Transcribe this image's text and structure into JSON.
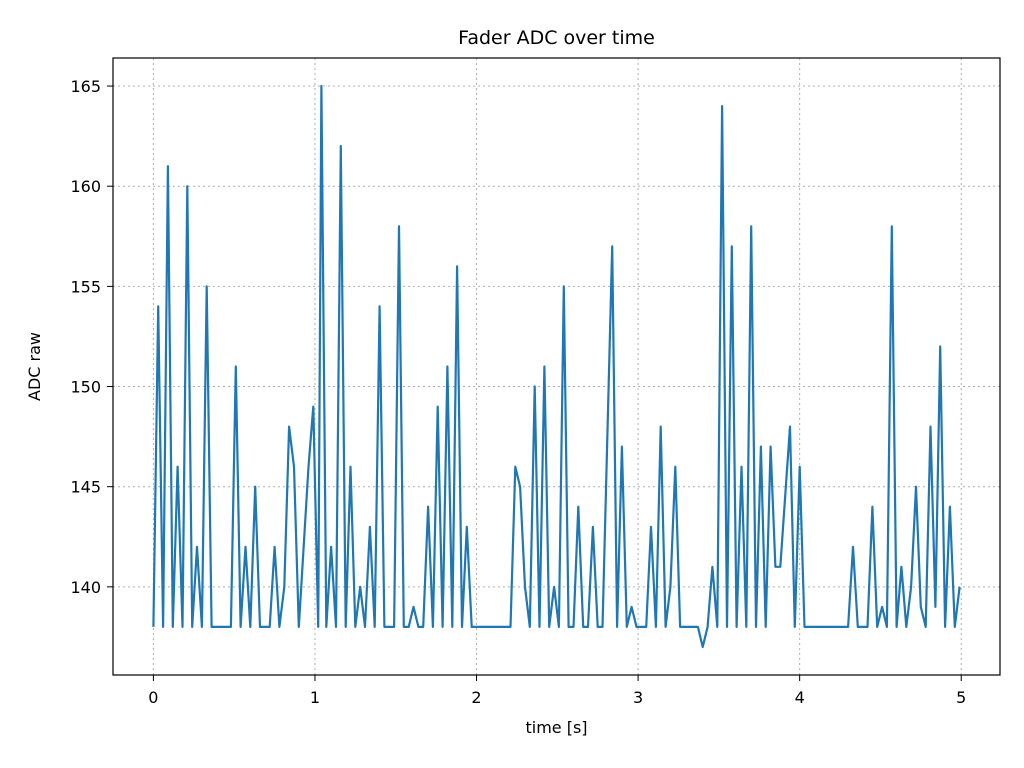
{
  "chart_data": {
    "type": "line",
    "title": "Fader ADC over time",
    "xlabel": "time [s]",
    "ylabel": "ADC raw",
    "xlim": [
      -0.25,
      5.24
    ],
    "ylim": [
      135.6,
      166.4
    ],
    "xticks": [
      0,
      1,
      2,
      3,
      4,
      5
    ],
    "yticks": [
      140,
      145,
      150,
      155,
      160,
      165
    ],
    "grid": true,
    "grid_style": "dotted",
    "legend": "none",
    "series": [
      {
        "color": "#1f77b4",
        "points": [
          [
            0.0,
            138
          ],
          [
            0.03,
            154
          ],
          [
            0.06,
            138
          ],
          [
            0.09,
            161
          ],
          [
            0.12,
            138
          ],
          [
            0.15,
            146
          ],
          [
            0.18,
            138
          ],
          [
            0.21,
            160
          ],
          [
            0.24,
            138
          ],
          [
            0.27,
            142
          ],
          [
            0.3,
            138
          ],
          [
            0.33,
            155
          ],
          [
            0.36,
            138
          ],
          [
            0.48,
            138
          ],
          [
            0.51,
            151
          ],
          [
            0.54,
            138
          ],
          [
            0.57,
            142
          ],
          [
            0.6,
            138
          ],
          [
            0.63,
            145
          ],
          [
            0.66,
            138
          ],
          [
            0.72,
            138
          ],
          [
            0.75,
            142
          ],
          [
            0.78,
            138
          ],
          [
            0.81,
            140
          ],
          [
            0.84,
            148
          ],
          [
            0.87,
            146
          ],
          [
            0.9,
            138
          ],
          [
            0.96,
            146
          ],
          [
            0.99,
            149
          ],
          [
            1.02,
            138
          ],
          [
            1.04,
            165
          ],
          [
            1.07,
            138
          ],
          [
            1.1,
            142
          ],
          [
            1.13,
            138
          ],
          [
            1.16,
            162
          ],
          [
            1.19,
            138
          ],
          [
            1.22,
            146
          ],
          [
            1.25,
            138
          ],
          [
            1.28,
            140
          ],
          [
            1.31,
            138
          ],
          [
            1.34,
            143
          ],
          [
            1.37,
            138
          ],
          [
            1.4,
            154
          ],
          [
            1.43,
            138
          ],
          [
            1.49,
            138
          ],
          [
            1.52,
            158
          ],
          [
            1.55,
            138
          ],
          [
            1.58,
            138
          ],
          [
            1.61,
            139
          ],
          [
            1.64,
            138
          ],
          [
            1.67,
            138
          ],
          [
            1.7,
            144
          ],
          [
            1.73,
            138
          ],
          [
            1.76,
            149
          ],
          [
            1.79,
            138
          ],
          [
            1.82,
            151
          ],
          [
            1.85,
            138
          ],
          [
            1.88,
            156
          ],
          [
            1.91,
            138
          ],
          [
            1.94,
            143
          ],
          [
            1.97,
            138
          ],
          [
            2.21,
            138
          ],
          [
            2.24,
            146
          ],
          [
            2.27,
            145
          ],
          [
            2.3,
            140
          ],
          [
            2.33,
            138
          ],
          [
            2.36,
            150
          ],
          [
            2.39,
            138
          ],
          [
            2.42,
            151
          ],
          [
            2.45,
            138
          ],
          [
            2.48,
            140
          ],
          [
            2.51,
            138
          ],
          [
            2.54,
            155
          ],
          [
            2.57,
            138
          ],
          [
            2.6,
            138
          ],
          [
            2.63,
            144
          ],
          [
            2.66,
            138
          ],
          [
            2.69,
            138
          ],
          [
            2.72,
            143
          ],
          [
            2.75,
            138
          ],
          [
            2.78,
            138
          ],
          [
            2.84,
            157
          ],
          [
            2.87,
            138
          ],
          [
            2.9,
            147
          ],
          [
            2.93,
            138
          ],
          [
            2.96,
            139
          ],
          [
            2.99,
            138
          ],
          [
            3.05,
            138
          ],
          [
            3.08,
            143
          ],
          [
            3.11,
            138
          ],
          [
            3.14,
            148
          ],
          [
            3.17,
            138
          ],
          [
            3.2,
            140
          ],
          [
            3.23,
            146
          ],
          [
            3.26,
            138
          ],
          [
            3.37,
            138
          ],
          [
            3.4,
            137
          ],
          [
            3.43,
            138
          ],
          [
            3.46,
            141
          ],
          [
            3.49,
            138
          ],
          [
            3.52,
            164
          ],
          [
            3.55,
            138
          ],
          [
            3.58,
            157
          ],
          [
            3.61,
            138
          ],
          [
            3.64,
            146
          ],
          [
            3.67,
            138
          ],
          [
            3.7,
            158
          ],
          [
            3.73,
            138
          ],
          [
            3.76,
            147
          ],
          [
            3.79,
            138
          ],
          [
            3.82,
            147
          ],
          [
            3.85,
            141
          ],
          [
            3.88,
            141
          ],
          [
            3.94,
            148
          ],
          [
            3.97,
            138
          ],
          [
            4.0,
            146
          ],
          [
            4.03,
            138
          ],
          [
            4.3,
            138
          ],
          [
            4.33,
            142
          ],
          [
            4.36,
            138
          ],
          [
            4.42,
            138
          ],
          [
            4.45,
            144
          ],
          [
            4.48,
            138
          ],
          [
            4.51,
            139
          ],
          [
            4.54,
            138
          ],
          [
            4.57,
            158
          ],
          [
            4.6,
            138
          ],
          [
            4.63,
            141
          ],
          [
            4.66,
            138
          ],
          [
            4.69,
            140
          ],
          [
            4.72,
            145
          ],
          [
            4.75,
            139
          ],
          [
            4.78,
            138
          ],
          [
            4.81,
            148
          ],
          [
            4.84,
            139
          ],
          [
            4.87,
            152
          ],
          [
            4.9,
            138
          ],
          [
            4.93,
            144
          ],
          [
            4.96,
            138
          ],
          [
            4.99,
            140
          ]
        ]
      }
    ]
  }
}
